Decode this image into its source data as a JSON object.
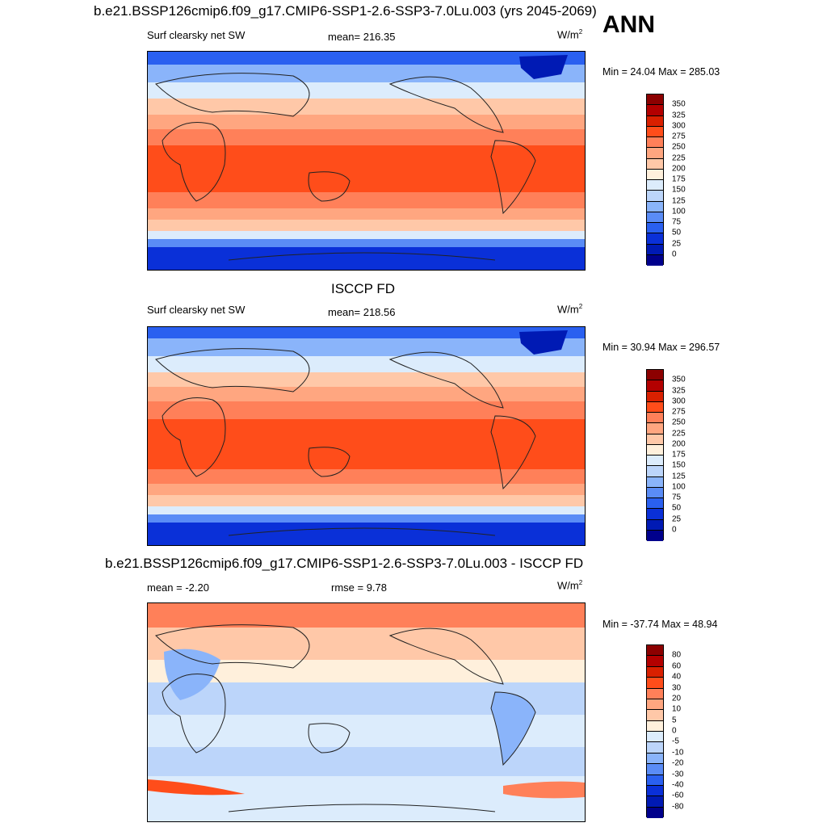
{
  "main_title": "b.e21.BSSP126cmip6.f09_g17.CMIP6-SSP1-2.6-SSP3-7.0Lu.003 (yrs 2045-2069)",
  "season": "ANN",
  "panels": [
    {
      "header": "",
      "left_label": "Surf clearsky net SW",
      "center_label": "mean= 216.35",
      "units_base": "W/m",
      "units_exp": "2",
      "minmax": "Min =  24.04 Max = 285.03",
      "colorbar_labels": [
        "350",
        "325",
        "300",
        "275",
        "250",
        "225",
        "200",
        "175",
        "150",
        "125",
        "100",
        "75",
        "50",
        "25",
        "0"
      ]
    },
    {
      "header": "ISCCP FD",
      "left_label": "Surf clearsky net SW",
      "center_label": "mean= 218.56",
      "units_base": "W/m",
      "units_exp": "2",
      "minmax": "Min =  30.94 Max = 296.57",
      "colorbar_labels": [
        "350",
        "325",
        "300",
        "275",
        "250",
        "225",
        "200",
        "175",
        "150",
        "125",
        "100",
        "75",
        "50",
        "25",
        "0"
      ]
    },
    {
      "header": "b.e21.BSSP126cmip6.f09_g17.CMIP6-SSP1-2.6-SSP3-7.0Lu.003 - ISCCP FD",
      "left_label": "mean =  -2.20",
      "center_label": "rmse =   9.78",
      "units_base": "W/m",
      "units_exp": "2",
      "minmax": "Min = -37.74 Max =  48.94",
      "colorbar_labels": [
        "80",
        "60",
        "40",
        "30",
        "20",
        "10",
        "5",
        "0",
        "-5",
        "-10",
        "-20",
        "-30",
        "-40",
        "-60",
        "-80"
      ]
    }
  ],
  "colors": {
    "scale": [
      "#8c0000",
      "#b30000",
      "#d92000",
      "#ff4d1a",
      "#ff8059",
      "#ffa680",
      "#ffc8a8",
      "#fff0dc",
      "#dcecfc",
      "#bcd5fa",
      "#8ab4fa",
      "#5a8cf6",
      "#2a60f0",
      "#0a30d8",
      "#001ab4",
      "#00008c"
    ]
  }
}
